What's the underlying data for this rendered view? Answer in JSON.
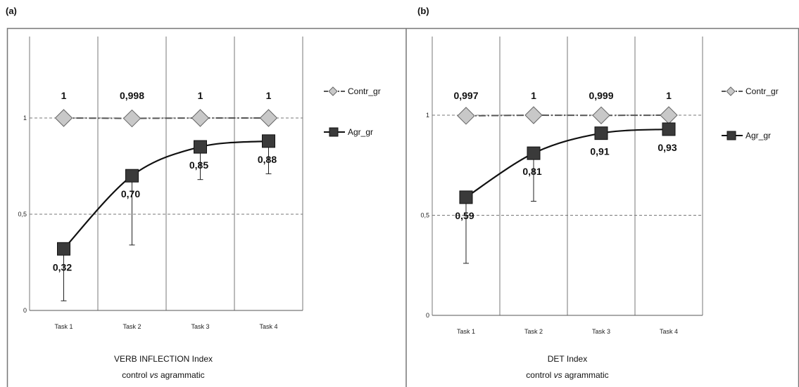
{
  "chart_data": [
    {
      "panel": "(a)",
      "type": "line",
      "categories": [
        "Task 1",
        "Task 2",
        "Task 3",
        "Task 4"
      ],
      "yticks": [
        "0",
        "0,5",
        "1"
      ],
      "ylim": [
        0,
        1
      ],
      "grid": true,
      "legend_position": "right",
      "series": [
        {
          "name": "Contr_gr",
          "values": [
            1,
            0.998,
            1,
            1
          ],
          "labels": [
            "1",
            "0,998",
            "1",
            "1"
          ],
          "color": "#c8c8c8"
        },
        {
          "name": "Agr_gr",
          "values": [
            0.32,
            0.7,
            0.85,
            0.88
          ],
          "labels": [
            "0,32",
            "0,70",
            "0,85",
            "0,88"
          ],
          "color": "#3a3a3a",
          "error_low": [
            0.05,
            0.34,
            0.68,
            0.71
          ],
          "error_high": [
            0.32,
            0.7,
            0.85,
            0.88
          ]
        }
      ],
      "caption_line1": "VERB INFLECTION Index",
      "caption_line2_pre": "control ",
      "caption_line2_italic": "vs",
      "caption_line2_post": " agrammatic"
    },
    {
      "panel": "(b)",
      "type": "line",
      "categories": [
        "Task 1",
        "Task 2",
        "Task 3",
        "Task 4"
      ],
      "yticks": [
        "0",
        "0,5",
        "1"
      ],
      "ylim": [
        0,
        1
      ],
      "grid": true,
      "legend_position": "right",
      "series": [
        {
          "name": "Contr_gr",
          "values": [
            0.997,
            1,
            0.999,
            1
          ],
          "labels": [
            "0,997",
            "1",
            "0,999",
            "1"
          ],
          "color": "#c8c8c8"
        },
        {
          "name": "Agr_gr",
          "values": [
            0.59,
            0.81,
            0.91,
            0.93
          ],
          "labels": [
            "0,59",
            "0,81",
            "0,91",
            "0,93"
          ],
          "color": "#3a3a3a",
          "error_low": [
            0.26,
            0.57,
            0.91,
            0.93
          ],
          "error_high": [
            0.59,
            0.81,
            0.91,
            0.93
          ]
        }
      ],
      "caption_line1": "DET Index",
      "caption_line2_pre": "control ",
      "caption_line2_italic": "vs",
      "caption_line2_post": " agrammatic"
    }
  ]
}
